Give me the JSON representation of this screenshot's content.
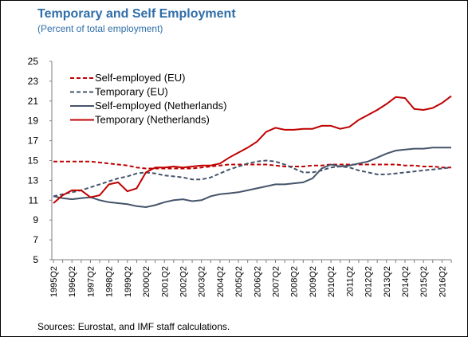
{
  "chart_data": {
    "type": "line",
    "title": "Temporary and Self Employment",
    "subtitle": "(Percent of total employment)",
    "source": "Sources: Eurostat, and IMF staff calculations.",
    "categories": [
      "1995Q2",
      null,
      "1996Q2",
      null,
      "1997Q2",
      null,
      "1998Q2",
      null,
      "1999Q2",
      null,
      "2000Q2",
      null,
      "2001Q2",
      null,
      "2002Q2",
      null,
      "2003Q2",
      null,
      "2004Q2",
      null,
      "2005Q2",
      null,
      "2006Q2",
      null,
      "2007Q2",
      null,
      "2008Q2",
      null,
      "2009Q2",
      null,
      "2010Q2",
      null,
      "2011Q2",
      null,
      "2012Q2",
      null,
      "2013Q2",
      null,
      "2014Q2",
      null,
      "2015Q2",
      null,
      "2016Q2",
      null
    ],
    "ylim": [
      5,
      25
    ],
    "yticks": [
      5,
      7,
      9,
      11,
      13,
      15,
      17,
      19,
      21,
      23,
      25
    ],
    "legend": "upper left",
    "series": [
      {
        "name": "Self-employed (EU)",
        "color": "#c00000",
        "dashed": true,
        "values": [
          14.9,
          14.9,
          14.9,
          14.9,
          14.9,
          14.8,
          14.7,
          14.6,
          14.5,
          14.3,
          14.2,
          14.2,
          14.2,
          14.2,
          14.2,
          14.2,
          14.3,
          14.4,
          14.5,
          14.6,
          14.6,
          14.6,
          14.6,
          14.6,
          14.5,
          14.4,
          14.4,
          14.4,
          14.5,
          14.5,
          14.6,
          14.6,
          14.6,
          14.6,
          14.6,
          14.6,
          14.6,
          14.6,
          14.5,
          14.5,
          14.4,
          14.4,
          14.3,
          14.3
        ]
      },
      {
        "name": "Temporary (EU)",
        "color": "#44546a",
        "dashed": true,
        "values": [
          11.4,
          11.6,
          11.8,
          12.0,
          12.3,
          12.6,
          12.9,
          13.2,
          13.4,
          13.7,
          13.8,
          13.7,
          13.5,
          13.4,
          13.3,
          13.1,
          13.1,
          13.3,
          13.7,
          14.1,
          14.4,
          14.7,
          14.9,
          15.0,
          14.9,
          14.6,
          14.2,
          13.8,
          13.8,
          14.0,
          14.3,
          14.4,
          14.3,
          14.0,
          13.8,
          13.6,
          13.6,
          13.7,
          13.8,
          13.9,
          14.0,
          14.1,
          14.2,
          14.3
        ]
      },
      {
        "name": "Self-employed (Netherlands)",
        "color": "#44546a",
        "dashed": false,
        "values": [
          11.4,
          11.2,
          11.1,
          11.2,
          11.3,
          11.0,
          10.8,
          10.7,
          10.6,
          10.4,
          10.3,
          10.5,
          10.8,
          11.0,
          11.1,
          10.9,
          11.0,
          11.4,
          11.6,
          11.7,
          11.8,
          12.0,
          12.2,
          12.4,
          12.6,
          12.6,
          12.7,
          12.8,
          13.2,
          14.2,
          14.6,
          14.4,
          14.5,
          14.7,
          14.9,
          15.3,
          15.7,
          16.0,
          16.1,
          16.2,
          16.2,
          16.3,
          16.3,
          16.3
        ]
      },
      {
        "name": "Temporary (Netherlands)",
        "color": "#c00000",
        "dashed": false,
        "values": [
          10.7,
          11.5,
          12.0,
          12.0,
          11.3,
          11.5,
          12.6,
          12.8,
          11.9,
          12.2,
          13.8,
          14.3,
          14.3,
          14.4,
          14.3,
          14.4,
          14.5,
          14.5,
          14.7,
          15.3,
          15.8,
          16.3,
          16.9,
          17.9,
          18.3,
          18.1,
          18.1,
          18.2,
          18.2,
          18.5,
          18.5,
          18.2,
          18.4,
          19.1,
          19.6,
          20.1,
          20.7,
          21.4,
          21.3,
          20.2,
          20.1,
          20.3,
          20.8,
          21.5
        ]
      }
    ]
  }
}
